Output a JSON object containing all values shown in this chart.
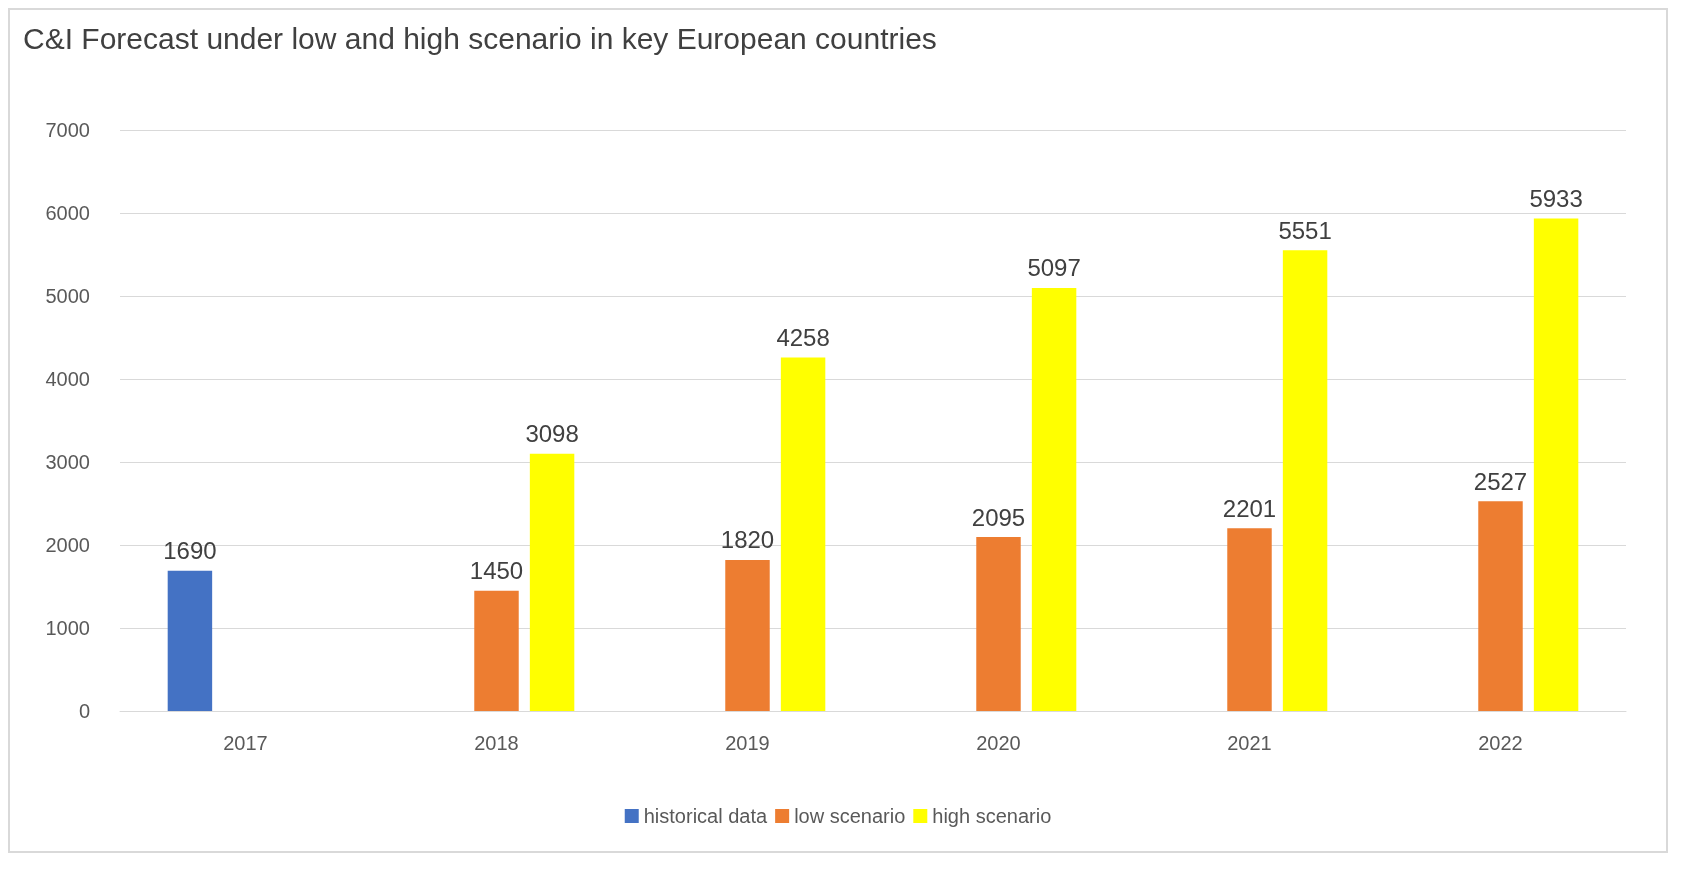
{
  "chart_data": {
    "type": "bar",
    "title": "C&I Forecast under low and high scenario in key European countries",
    "categories": [
      "2017",
      "2018",
      "2019",
      "2020",
      "2021",
      "2022"
    ],
    "series": [
      {
        "name": "historical data",
        "color": "#4472c4",
        "values": [
          1690,
          null,
          null,
          null,
          null,
          null
        ]
      },
      {
        "name": "low scenario",
        "color": "#ed7d31",
        "values": [
          null,
          1450,
          1820,
          2095,
          2201,
          2527
        ]
      },
      {
        "name": "high scenario",
        "color": "#ffff00",
        "values": [
          null,
          3098,
          4258,
          5097,
          5551,
          5933
        ]
      }
    ],
    "ylim": [
      0,
      7000
    ],
    "yticks": [
      0,
      1000,
      2000,
      3000,
      4000,
      5000,
      6000,
      7000
    ],
    "grid": "y",
    "legend": "bottom",
    "data_labels": true
  }
}
